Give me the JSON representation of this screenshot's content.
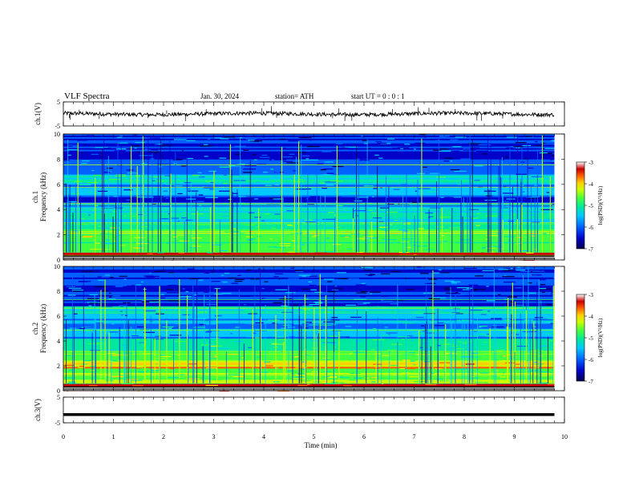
{
  "header": {
    "title": "VLF  Spectra",
    "date": "Jan. 30, 2024",
    "station": "station= ATH",
    "start": "start  UT  =    0 : 0  : 1"
  },
  "chart_data": [
    {
      "type": "line",
      "name": "ch1-waveform",
      "ylabel": "ch.1(V)",
      "ylim": [
        -5,
        5
      ],
      "yticks": [
        "5",
        "-5"
      ],
      "x": [
        0,
        9.8
      ],
      "baseline": 0,
      "note_values": "noisy waveform near 0 V"
    },
    {
      "type": "heatmap",
      "name": "ch1-spectrogram",
      "ylabel": "ch.1\nFrequency  (kHz)",
      "ylim": [
        0,
        10
      ],
      "yticks": [
        "0",
        "2",
        "4",
        "6",
        "8",
        "10"
      ],
      "xlim": [
        0,
        10
      ],
      "data_end_min": 9.8,
      "bands": [
        {
          "from": 0.0,
          "to": 0.6,
          "level": 0.95
        },
        {
          "from": 0.6,
          "to": 1.2,
          "level": 0.55
        },
        {
          "from": 1.2,
          "to": 1.8,
          "level": 0.5
        },
        {
          "from": 1.8,
          "to": 2.3,
          "level": 0.62
        },
        {
          "from": 2.3,
          "to": 3.0,
          "level": 0.5
        },
        {
          "from": 3.0,
          "to": 4.0,
          "level": 0.4
        },
        {
          "from": 4.0,
          "to": 4.6,
          "level": 0.3
        },
        {
          "from": 4.6,
          "to": 5.0,
          "level": 0.18
        },
        {
          "from": 5.0,
          "to": 6.0,
          "level": 0.3
        },
        {
          "from": 6.0,
          "to": 6.8,
          "level": 0.42
        },
        {
          "from": 6.8,
          "to": 8.0,
          "level": 0.25
        },
        {
          "from": 8.0,
          "to": 10.0,
          "level": 0.2
        }
      ],
      "colorbar": {
        "label": "log(PSD)(V²/Hz)",
        "ticks": [
          "-3",
          "-4",
          "-5",
          "-6",
          "-7"
        ],
        "range": [
          -7,
          -3
        ]
      }
    },
    {
      "type": "heatmap",
      "name": "ch2-spectrogram",
      "ylabel": "ch.2\nFrequency  (kHz)",
      "ylim": [
        0,
        10
      ],
      "yticks": [
        "0",
        "2",
        "4",
        "6",
        "8",
        "10"
      ],
      "xlim": [
        0,
        10
      ],
      "data_end_min": 9.8,
      "bands": [
        {
          "from": 0.0,
          "to": 0.6,
          "level": 0.95
        },
        {
          "from": 0.6,
          "to": 1.3,
          "level": 0.6
        },
        {
          "from": 1.3,
          "to": 1.8,
          "level": 0.55
        },
        {
          "from": 1.8,
          "to": 2.3,
          "level": 0.75
        },
        {
          "from": 2.3,
          "to": 3.2,
          "level": 0.55
        },
        {
          "from": 3.2,
          "to": 4.2,
          "level": 0.45
        },
        {
          "from": 4.2,
          "to": 5.0,
          "level": 0.35
        },
        {
          "from": 5.0,
          "to": 6.3,
          "level": 0.3
        },
        {
          "from": 6.3,
          "to": 6.8,
          "level": 0.4
        },
        {
          "from": 6.8,
          "to": 10.0,
          "level": 0.2
        }
      ],
      "colorbar": {
        "label": "log(PSD)(V²/Hz)",
        "ticks": [
          "-3",
          "-4",
          "-5",
          "-6",
          "-7"
        ],
        "range": [
          -7,
          -3
        ]
      }
    },
    {
      "type": "line",
      "name": "ch3-waveform",
      "ylabel": "ch.3(V)",
      "ylim": [
        -5,
        5
      ],
      "yticks": [
        "5",
        "-5"
      ],
      "x": [
        0,
        9.8
      ],
      "constant_value": -1.8
    }
  ],
  "xaxis": {
    "label": "Time  (min)",
    "ticks": [
      "0",
      "1",
      "2",
      "3",
      "4",
      "5",
      "6",
      "7",
      "8",
      "9",
      "10"
    ],
    "xlim": [
      0,
      10
    ]
  },
  "colors": {
    "colormap": [
      "#00004a",
      "#0000c8",
      "#0060ff",
      "#00c8ff",
      "#00e8a0",
      "#40ff40",
      "#c8ff00",
      "#ffd000",
      "#ff6000",
      "#c80000",
      "#ffffff"
    ]
  }
}
